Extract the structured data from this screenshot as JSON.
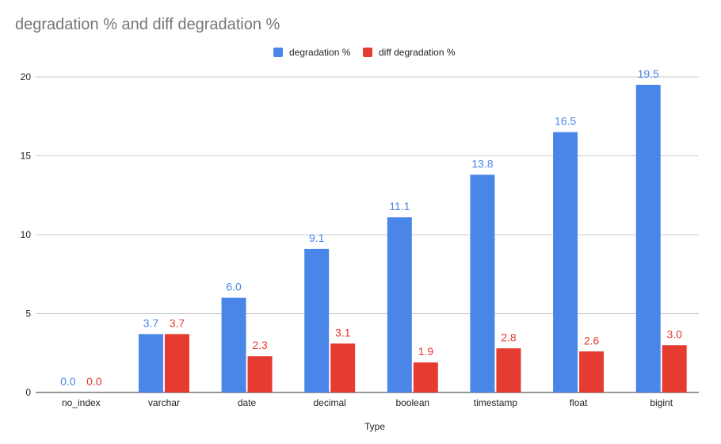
{
  "chart_data": {
    "type": "bar",
    "title": "degradation % and diff degradation %",
    "xlabel": "Type",
    "ylabel": "",
    "categories": [
      "no_index",
      "varchar",
      "date",
      "decimal",
      "boolean",
      "timestamp",
      "float",
      "bigint"
    ],
    "series": [
      {
        "name": "degradation %",
        "color": "#4a86e8",
        "values": [
          0.0,
          3.7,
          6.0,
          9.1,
          11.1,
          13.8,
          16.5,
          19.5
        ],
        "labels": [
          "0.0",
          "3.7",
          "6.0",
          "9.1",
          "11.1",
          "13.8",
          "16.5",
          "19.5"
        ]
      },
      {
        "name": "diff degradation %",
        "color": "#e53b30",
        "values": [
          0.0,
          3.7,
          2.3,
          3.1,
          1.9,
          2.8,
          2.6,
          3.0
        ],
        "labels": [
          "0.0",
          "3.7",
          "2.3",
          "3.1",
          "1.9",
          "2.8",
          "2.6",
          "3.0"
        ]
      }
    ],
    "ylim": [
      0,
      20
    ],
    "yticks": [
      0,
      5,
      10,
      15,
      20
    ],
    "grid": true,
    "legend": "top-center"
  }
}
